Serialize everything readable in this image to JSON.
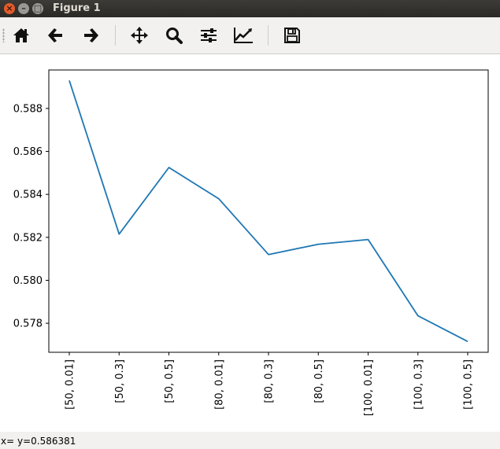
{
  "window": {
    "title": "Figure 1",
    "close_icon": "×",
    "minimize_icon": "–",
    "maximize_icon": "□"
  },
  "toolbar": {
    "items": [
      {
        "name": "home-icon"
      },
      {
        "name": "back-arrow-icon"
      },
      {
        "name": "forward-arrow-icon"
      },
      {
        "name": "pan-move-icon"
      },
      {
        "name": "zoom-magnifier-icon"
      },
      {
        "name": "subplots-sliders-icon"
      },
      {
        "name": "edit-curves-icon"
      },
      {
        "name": "save-floppy-icon"
      }
    ]
  },
  "status": {
    "text": "x= y=0.586381"
  },
  "colors": {
    "line": "#1f77b4",
    "titlebar": "#3c3b37"
  },
  "chart_data": {
    "type": "line",
    "categories": [
      "[50, 0.01]",
      "[50, 0.3]",
      "[50, 0.5]",
      "[80, 0.01]",
      "[80, 0.3]",
      "[80, 0.5]",
      "[100, 0.01]",
      "[100, 0.3]",
      "[100, 0.5]"
    ],
    "values": [
      0.5893,
      0.58215,
      0.58525,
      0.5838,
      0.5812,
      0.58168,
      0.5819,
      0.57835,
      0.57715
    ],
    "ylim": [
      0.57665,
      0.58979
    ],
    "yticks": [
      "0.578",
      "0.580",
      "0.582",
      "0.584",
      "0.586",
      "0.588"
    ],
    "ytick_values": [
      0.578,
      0.58,
      0.582,
      0.584,
      0.586,
      0.588
    ],
    "grid": false,
    "title": "",
    "xlabel": "",
    "ylabel": ""
  }
}
